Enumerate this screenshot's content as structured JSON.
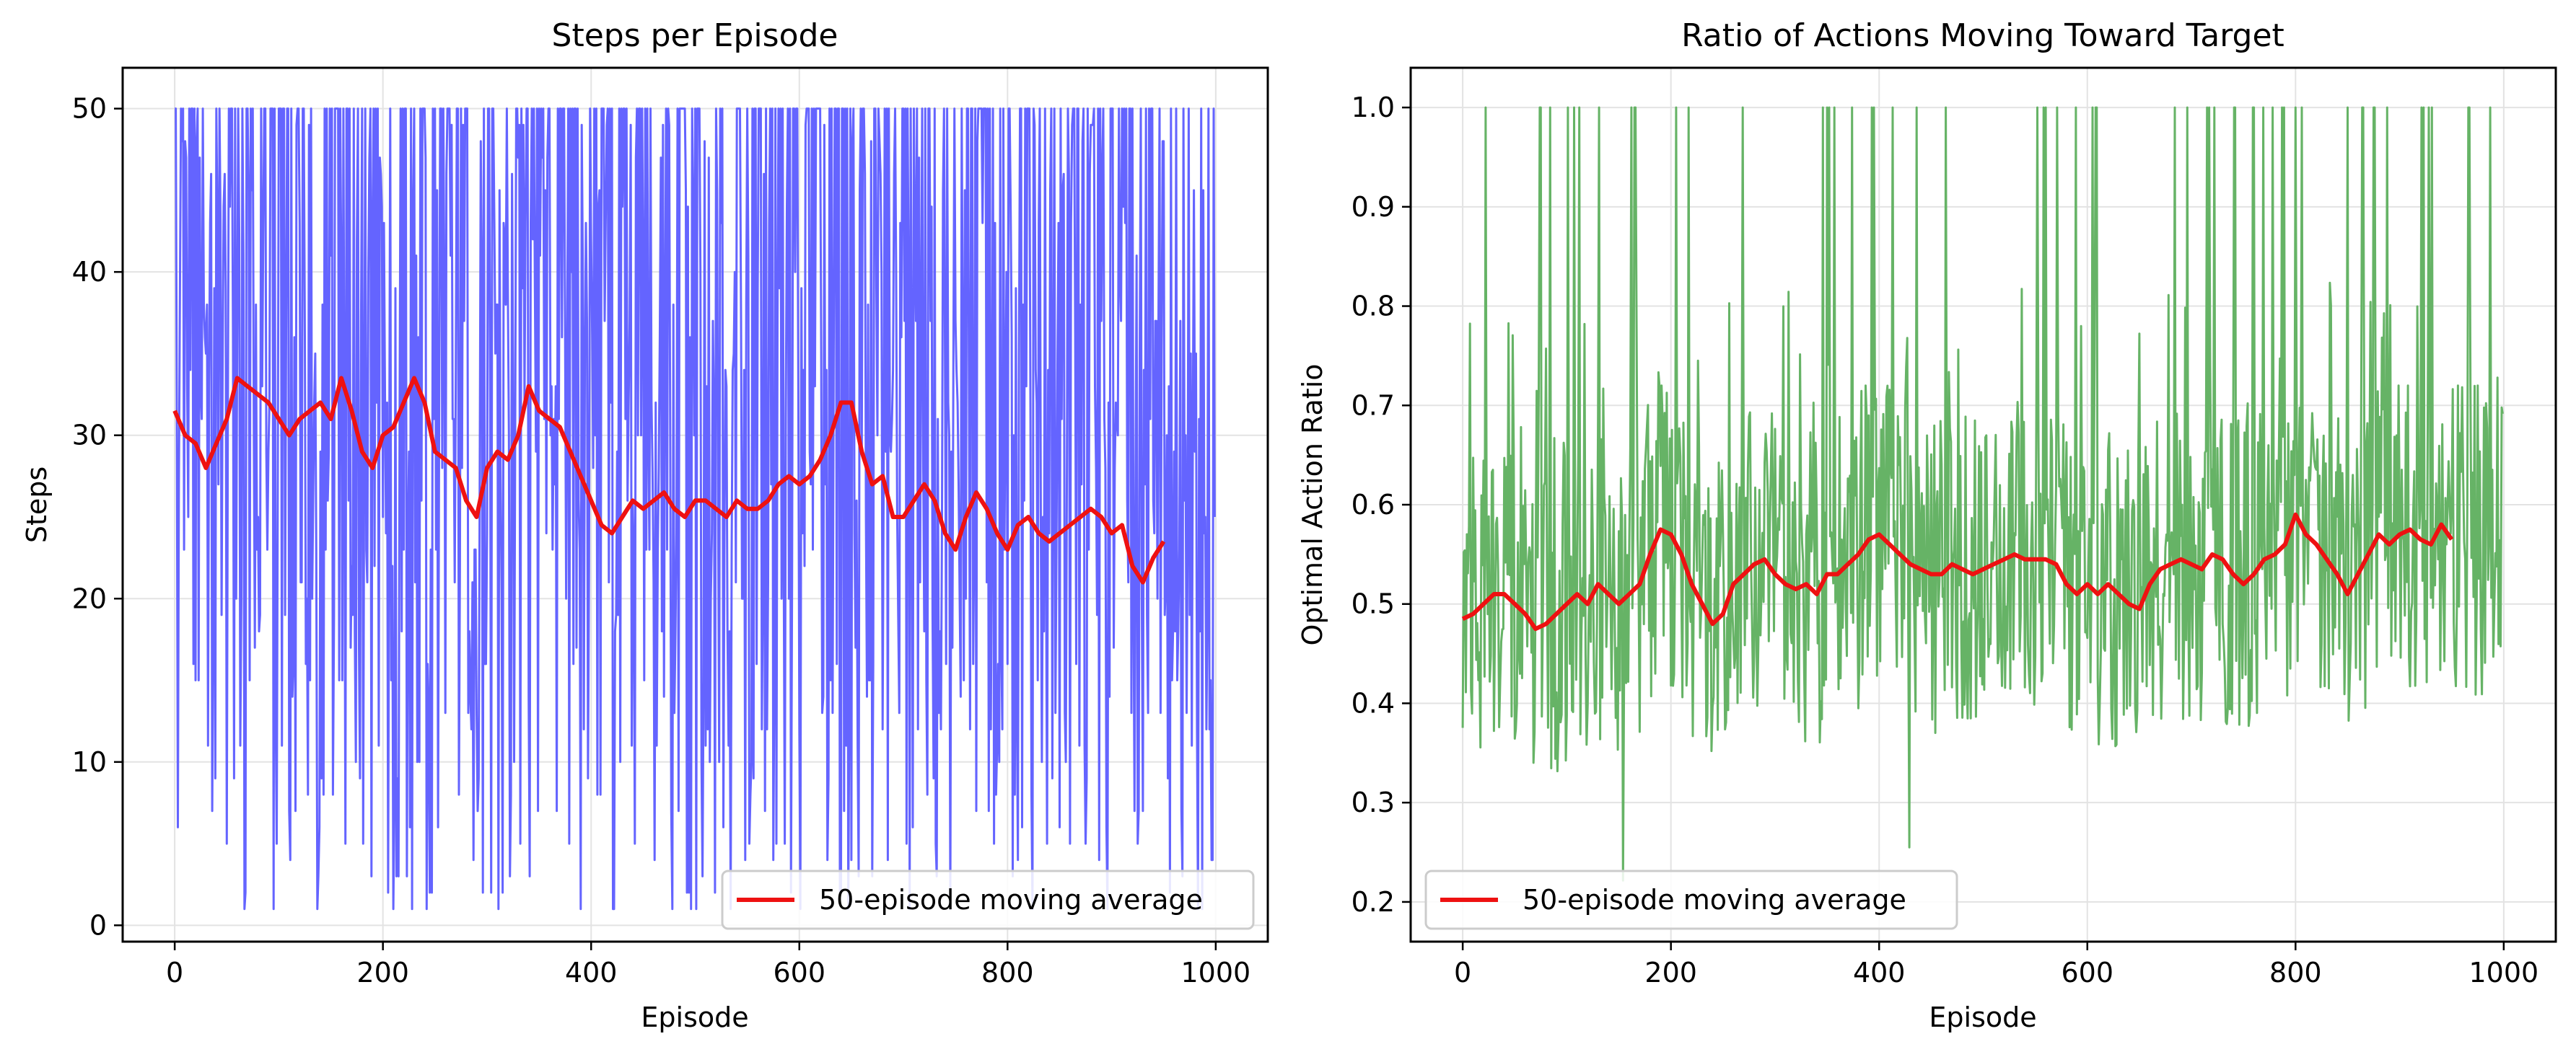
{
  "chart_data": [
    {
      "type": "line",
      "title": "Steps per Episode",
      "xlabel": "Episode",
      "ylabel": "Steps",
      "xlim": [
        -50,
        1050
      ],
      "ylim": [
        -1,
        52.5
      ],
      "xticks": [
        0,
        200,
        400,
        600,
        800,
        1000
      ],
      "yticks": [
        0,
        10,
        20,
        30,
        40,
        50
      ],
      "grid": true,
      "legend": {
        "position": "lower-right",
        "entries": [
          "50-episode moving average"
        ]
      },
      "colors": {
        "raw": "#6464ff",
        "average": "#ee1111"
      },
      "raw_series": {
        "description": "per-episode steps, dense noisy trace spanning the full range",
        "x_range": [
          0,
          999
        ],
        "min": 1,
        "max": 50
      },
      "series": [
        {
          "name": "50-episode moving average",
          "x": [
            0,
            10,
            20,
            30,
            40,
            50,
            60,
            70,
            80,
            90,
            100,
            110,
            120,
            130,
            140,
            150,
            160,
            170,
            180,
            190,
            200,
            210,
            220,
            230,
            240,
            250,
            260,
            270,
            280,
            290,
            300,
            310,
            320,
            330,
            340,
            350,
            360,
            370,
            380,
            390,
            400,
            410,
            420,
            430,
            440,
            450,
            460,
            470,
            480,
            490,
            500,
            510,
            520,
            530,
            540,
            550,
            560,
            570,
            580,
            590,
            600,
            610,
            620,
            630,
            640,
            650,
            660,
            670,
            680,
            690,
            700,
            710,
            720,
            730,
            740,
            750,
            760,
            770,
            780,
            790,
            800,
            810,
            820,
            830,
            840,
            850,
            860,
            870,
            880,
            890,
            900,
            910,
            920,
            930,
            940,
            950
          ],
          "values": [
            31.5,
            30,
            29.5,
            28,
            29.5,
            31,
            33.5,
            33,
            32.5,
            32,
            31,
            30,
            31,
            31.5,
            32,
            31,
            33.5,
            31.5,
            29,
            28,
            30,
            30.5,
            32,
            33.5,
            32,
            29,
            28.5,
            28,
            26,
            25,
            28,
            29,
            28.5,
            30,
            33,
            31.5,
            31,
            30.5,
            29,
            27.5,
            26,
            24.5,
            24,
            25,
            26,
            25.5,
            26,
            26.5,
            25.5,
            25,
            26,
            26,
            25.5,
            25,
            26,
            25.5,
            25.5,
            26,
            27,
            27.5,
            27,
            27.5,
            28.5,
            30,
            32,
            32,
            29,
            27,
            27.5,
            25,
            25,
            26,
            27,
            26,
            24,
            23,
            25,
            26.5,
            25.5,
            24,
            23,
            24.5,
            25,
            24,
            23.5,
            24,
            24.5,
            25,
            25.5,
            25,
            24,
            24.5,
            22,
            21,
            22.5,
            23.5
          ]
        }
      ]
    },
    {
      "type": "line",
      "title": "Ratio of Actions Moving Toward Target",
      "xlabel": "Episode",
      "ylabel": "Optimal Action Ratio",
      "xlim": [
        -50,
        1050
      ],
      "ylim": [
        0.16,
        1.04
      ],
      "xticks": [
        0,
        200,
        400,
        600,
        800,
        1000
      ],
      "yticks": [
        0.2,
        0.3,
        0.4,
        0.5,
        0.6,
        0.7,
        0.8,
        0.9,
        1.0
      ],
      "grid": true,
      "legend": {
        "position": "lower-left",
        "entries": [
          "50-episode moving average"
        ]
      },
      "colors": {
        "raw": "#66b366",
        "average": "#ee1111"
      },
      "raw_series": {
        "description": "per-episode ratio, dense noisy trace mostly between 0.35 and 0.7 with spikes to 1.0",
        "x_range": [
          0,
          999
        ],
        "min": 0.2,
        "max": 1.0
      },
      "series": [
        {
          "name": "50-episode moving average",
          "x": [
            0,
            10,
            20,
            30,
            40,
            50,
            60,
            70,
            80,
            90,
            100,
            110,
            120,
            130,
            140,
            150,
            160,
            170,
            180,
            190,
            200,
            210,
            220,
            230,
            240,
            250,
            260,
            270,
            280,
            290,
            300,
            310,
            320,
            330,
            340,
            350,
            360,
            370,
            380,
            390,
            400,
            410,
            420,
            430,
            440,
            450,
            460,
            470,
            480,
            490,
            500,
            510,
            520,
            530,
            540,
            550,
            560,
            570,
            580,
            590,
            600,
            610,
            620,
            630,
            640,
            650,
            660,
            670,
            680,
            690,
            700,
            710,
            720,
            730,
            740,
            750,
            760,
            770,
            780,
            790,
            800,
            810,
            820,
            830,
            840,
            850,
            860,
            870,
            880,
            890,
            900,
            910,
            920,
            930,
            940,
            950
          ],
          "values": [
            0.485,
            0.49,
            0.5,
            0.51,
            0.51,
            0.5,
            0.49,
            0.475,
            0.48,
            0.49,
            0.5,
            0.51,
            0.5,
            0.52,
            0.51,
            0.5,
            0.51,
            0.52,
            0.55,
            0.575,
            0.57,
            0.55,
            0.52,
            0.5,
            0.48,
            0.49,
            0.52,
            0.53,
            0.54,
            0.545,
            0.53,
            0.52,
            0.515,
            0.52,
            0.51,
            0.53,
            0.53,
            0.54,
            0.55,
            0.565,
            0.57,
            0.56,
            0.55,
            0.54,
            0.535,
            0.53,
            0.53,
            0.54,
            0.535,
            0.53,
            0.535,
            0.54,
            0.545,
            0.55,
            0.545,
            0.545,
            0.545,
            0.54,
            0.52,
            0.51,
            0.52,
            0.51,
            0.52,
            0.51,
            0.5,
            0.495,
            0.52,
            0.535,
            0.54,
            0.545,
            0.54,
            0.535,
            0.55,
            0.545,
            0.53,
            0.52,
            0.53,
            0.545,
            0.55,
            0.56,
            0.59,
            0.57,
            0.56,
            0.545,
            0.53,
            0.51,
            0.53,
            0.55,
            0.57,
            0.56,
            0.57,
            0.575,
            0.565,
            0.56,
            0.58,
            0.565
          ]
        }
      ]
    }
  ]
}
